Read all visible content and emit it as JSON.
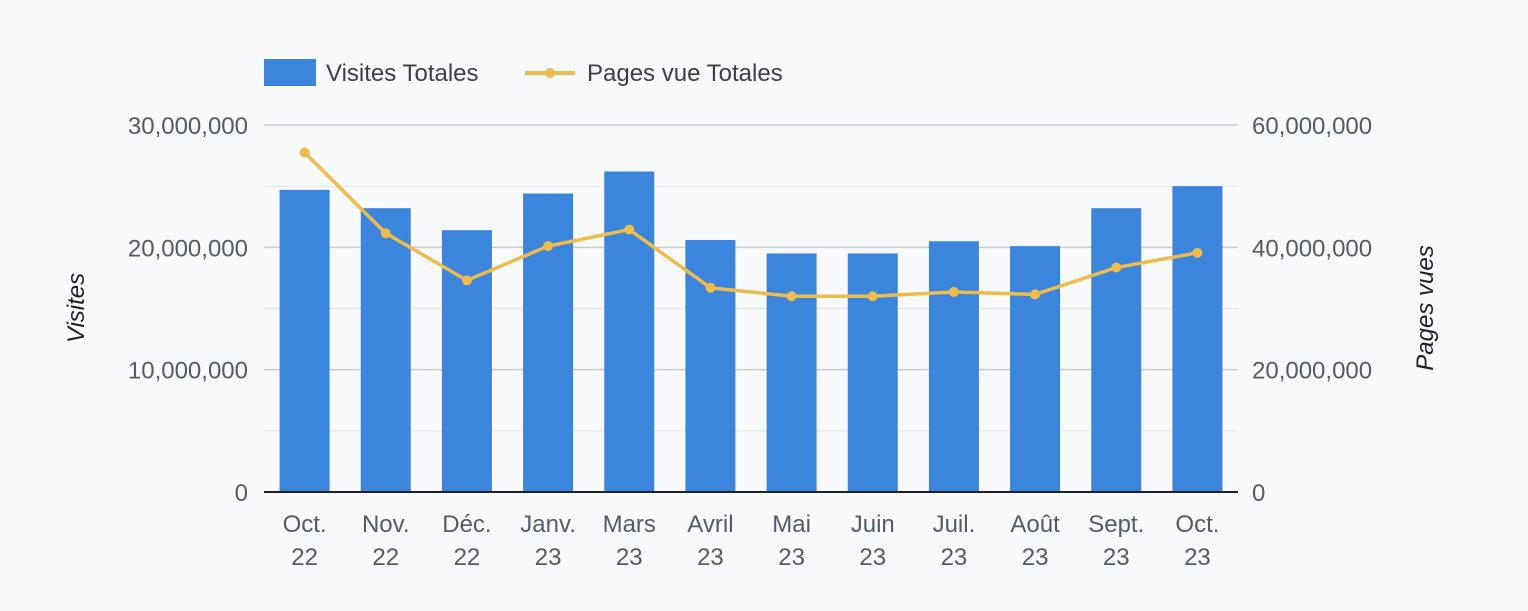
{
  "chart_data": {
    "type": "bar",
    "categories": [
      [
        "Oct.",
        "22"
      ],
      [
        "Nov.",
        "22"
      ],
      [
        "Déc.",
        "22"
      ],
      [
        "Janv.",
        "23"
      ],
      [
        "Mars",
        "23"
      ],
      [
        "Avril",
        "23"
      ],
      [
        "Mai",
        "23"
      ],
      [
        "Juin",
        "23"
      ],
      [
        "Juil.",
        "23"
      ],
      [
        "Août",
        "23"
      ],
      [
        "Sept.",
        "23"
      ],
      [
        "Oct.",
        "23"
      ]
    ],
    "series": [
      {
        "name": "Visites Totales",
        "type": "bar",
        "axis": "left",
        "color": "#3b86dc",
        "values": [
          24700000,
          23200000,
          21400000,
          24400000,
          26200000,
          20600000,
          19500000,
          19500000,
          20500000,
          20100000,
          23200000,
          25000000
        ]
      },
      {
        "name": "Pages vue Totales",
        "type": "line",
        "axis": "right",
        "color": "#efbb4a",
        "values": [
          55500000,
          42300000,
          34600000,
          40200000,
          42900000,
          33400000,
          32000000,
          32000000,
          32700000,
          32300000,
          36700000,
          39100000
        ]
      }
    ],
    "y_left": {
      "label": "Visites",
      "range": [
        0,
        30000000
      ],
      "ticks": [
        0,
        10000000,
        20000000,
        30000000
      ],
      "tick_labels": [
        "0",
        "10,000,000",
        "20,000,000",
        "30,000,000"
      ]
    },
    "y_right": {
      "label": "Pages vues",
      "range": [
        0,
        60000000
      ],
      "ticks": [
        0,
        20000000,
        40000000,
        60000000
      ],
      "tick_labels": [
        "0",
        "20,000,000",
        "40,000,000",
        "60,000,000"
      ]
    },
    "grid": true,
    "legend_position": "top-left"
  }
}
